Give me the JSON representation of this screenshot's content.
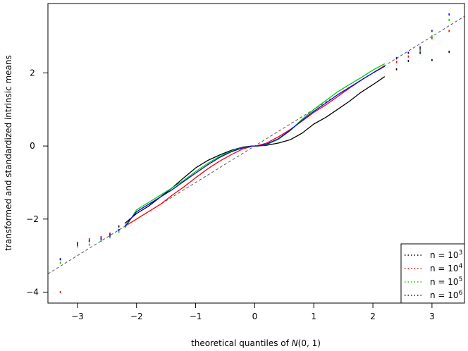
{
  "chart_data": {
    "type": "scatter",
    "title": "",
    "xlabel": "theoretical quantiles of N(0, 1)",
    "ylabel": "transformed and standardized intrinsic means",
    "xlim": [
      -3.5,
      3.55
    ],
    "ylim": [
      -4.3,
      3.9
    ],
    "x_ticks": [
      -3,
      -2,
      -1,
      0,
      1,
      2,
      3
    ],
    "y_ticks": [
      -4,
      -2,
      0,
      2
    ],
    "grid": false,
    "legend_position": "bottom-right",
    "reference_line": {
      "slope": 1,
      "intercept": 0,
      "style": "dashed",
      "color": "#555555"
    },
    "series": [
      {
        "name": "n = 10^3",
        "legend_base": "n = 10",
        "legend_exp": "3",
        "color": "#000000",
        "x": [
          -3.29,
          -3.0,
          -2.8,
          -2.6,
          -2.45,
          -2.3,
          -2.2,
          -2.0,
          -1.8,
          -1.6,
          -1.4,
          -1.2,
          -1.0,
          -0.8,
          -0.6,
          -0.4,
          -0.2,
          -0.05,
          0.0,
          0.05,
          0.2,
          0.4,
          0.6,
          0.8,
          1.0,
          1.2,
          1.4,
          1.6,
          1.8,
          2.0,
          2.2,
          2.4,
          2.6,
          2.8,
          3.0,
          3.29
        ],
        "y": [
          -3.1,
          -2.65,
          -2.6,
          -2.5,
          -2.4,
          -2.2,
          -2.12,
          -1.85,
          -1.65,
          -1.4,
          -1.15,
          -0.87,
          -0.6,
          -0.4,
          -0.25,
          -0.12,
          -0.03,
          0.0,
          0.0,
          0.0,
          0.02,
          0.08,
          0.17,
          0.35,
          0.6,
          0.78,
          1.0,
          1.22,
          1.47,
          1.68,
          1.9,
          2.1,
          2.33,
          2.55,
          2.35,
          2.58
        ]
      },
      {
        "name": "n = 10^4",
        "legend_base": "n = 10",
        "legend_exp": "4",
        "color": "#ff0000",
        "x": [
          -3.29,
          -3.0,
          -2.8,
          -2.6,
          -2.45,
          -2.3,
          -2.2,
          -2.0,
          -1.8,
          -1.6,
          -1.4,
          -1.2,
          -1.0,
          -0.8,
          -0.6,
          -0.4,
          -0.2,
          -0.05,
          0.0,
          0.05,
          0.2,
          0.4,
          0.6,
          0.8,
          1.0,
          1.2,
          1.4,
          1.6,
          1.8,
          2.0,
          2.2,
          2.4,
          2.6,
          2.8,
          3.0,
          3.29
        ],
        "y": [
          -4.0,
          -2.65,
          -2.55,
          -2.5,
          -2.4,
          -2.3,
          -2.2,
          -2.0,
          -1.8,
          -1.6,
          -1.35,
          -1.12,
          -0.87,
          -0.63,
          -0.42,
          -0.24,
          -0.08,
          -0.01,
          0.0,
          0.01,
          0.08,
          0.25,
          0.45,
          0.68,
          0.92,
          1.12,
          1.35,
          1.58,
          1.8,
          2.0,
          2.2,
          2.3,
          2.45,
          2.65,
          2.95,
          3.15
        ]
      },
      {
        "name": "n = 10^5",
        "legend_base": "n = 10",
        "legend_exp": "5",
        "color": "#00cd00",
        "x": [
          -3.29,
          -3.0,
          -2.8,
          -2.6,
          -2.45,
          -2.3,
          -2.2,
          -2.0,
          -1.8,
          -1.6,
          -1.4,
          -1.2,
          -1.0,
          -0.8,
          -0.6,
          -0.4,
          -0.2,
          -0.05,
          0.0,
          0.05,
          0.2,
          0.4,
          0.6,
          0.8,
          1.0,
          1.2,
          1.4,
          1.6,
          1.8,
          2.0,
          2.2,
          2.4,
          2.6,
          2.8,
          3.0,
          3.29
        ],
        "y": [
          -3.2,
          -2.75,
          -2.7,
          -2.6,
          -2.5,
          -2.35,
          -2.25,
          -1.75,
          -1.55,
          -1.35,
          -1.15,
          -0.94,
          -0.7,
          -0.48,
          -0.29,
          -0.14,
          -0.04,
          0.0,
          0.0,
          0.0,
          0.04,
          0.18,
          0.42,
          0.73,
          1.0,
          1.24,
          1.48,
          1.68,
          1.87,
          2.08,
          2.25,
          2.4,
          2.55,
          2.6,
          3.0,
          3.45
        ]
      },
      {
        "name": "n = 10^6",
        "legend_base": "n = 10",
        "legend_exp": "6",
        "color": "#0000ff",
        "x": [
          -3.29,
          -3.0,
          -2.8,
          -2.6,
          -2.45,
          -2.3,
          -2.2,
          -2.0,
          -1.8,
          -1.6,
          -1.4,
          -1.2,
          -1.0,
          -0.8,
          -0.6,
          -0.4,
          -0.2,
          -0.05,
          0.0,
          0.05,
          0.2,
          0.4,
          0.6,
          0.8,
          1.0,
          1.2,
          1.4,
          1.6,
          1.8,
          2.0,
          2.2,
          2.4,
          2.6,
          2.8,
          3.0,
          3.29
        ],
        "y": [
          -3.1,
          -2.7,
          -2.6,
          -2.55,
          -2.45,
          -2.3,
          -2.2,
          -1.8,
          -1.6,
          -1.4,
          -1.2,
          -0.97,
          -0.74,
          -0.52,
          -0.32,
          -0.16,
          -0.05,
          0.0,
          0.0,
          0.0,
          0.05,
          0.2,
          0.43,
          0.7,
          0.95,
          1.17,
          1.4,
          1.6,
          1.8,
          2.0,
          2.18,
          2.4,
          2.55,
          2.7,
          3.15,
          3.6
        ]
      }
    ]
  }
}
